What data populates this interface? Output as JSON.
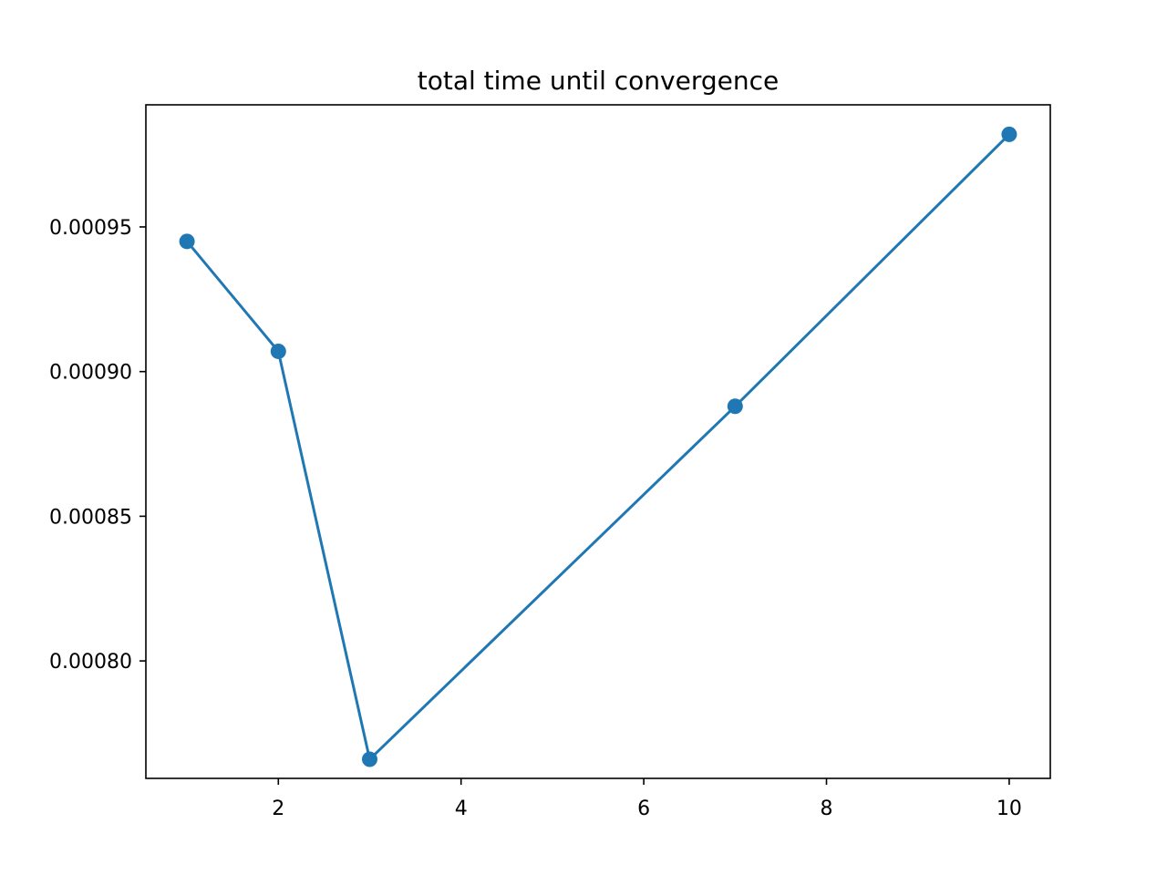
{
  "chart_data": {
    "type": "line",
    "title": "total time until convergence",
    "xlabel": "",
    "ylabel": "",
    "x": [
      1,
      2,
      3,
      7,
      10
    ],
    "series": [
      {
        "values": [
          0.000945,
          0.000907,
          0.000766,
          0.000888,
          0.000982
        ],
        "color": "#1f77b4",
        "marker": "circle"
      }
    ],
    "xlim": [
      0.55,
      10.45
    ],
    "ylim": [
      0.0007594,
      0.0009922
    ],
    "xticks": [
      2,
      4,
      6,
      8,
      10
    ],
    "xtick_labels": [
      "2",
      "4",
      "6",
      "8",
      "10"
    ],
    "yticks": [
      0.0008,
      0.00085,
      0.0009,
      0.00095
    ],
    "ytick_labels": [
      "0.00080",
      "0.00085",
      "0.00090",
      "0.00095"
    ],
    "grid": false,
    "legend": "none"
  }
}
